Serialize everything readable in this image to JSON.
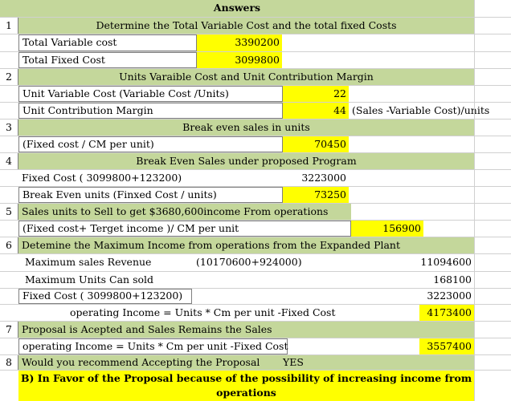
{
  "title": "Answers",
  "rows": {
    "s1_num": "1",
    "s1_head": "Determine the Total Variable Cost and the total fixed Costs",
    "tvc_label": "Total Variable cost",
    "tvc_value": "3390200",
    "tfc_label": "Total Fixed Cost",
    "tfc_value": "3099800",
    "s2_num": "2",
    "s2_head": "Units Varaible Cost and Unit Contribution Margin",
    "uvc_label": "Unit Variable Cost (Variable Cost /Units)",
    "uvc_value": "22",
    "ucm_label": "Unit Contribution Margin",
    "ucm_value": "44",
    "ucm_note": "(Sales -Variable Cost)/units",
    "s3_num": "3",
    "s3_head": "Break even sales in units",
    "be_label": "(Fixed cost / CM per unit)",
    "be_value": "70450",
    "s4_num": "4",
    "s4_head": "Break Even Sales under proposed Program",
    "fc_label": "Fixed Cost  ( 3099800+123200)",
    "fc_value": "3223000",
    "beu_label": "Break Even units (Finxed Cost / units)",
    "beu_value": "73250",
    "s5_num": "5",
    "s5_head": "Sales units to Sell to get $3680,600income From operations",
    "s5_label": "(Fixed cost+ Terget income )/ CM per unit",
    "s5_value": "156900",
    "s6_num": "6",
    "s6_head": "Detemine the Maximum Income from operations from the Expanded Plant",
    "msr_label": "Maximum sales Revenue",
    "msr_formula": "(10170600+924000)",
    "msr_value": "11094600",
    "mus_label": "Maximum Units Can sold",
    "mus_value": "168100",
    "fc2_label": "Fixed Cost  ( 3099800+123200)",
    "fc2_value": "3223000",
    "oi_label": "operating Income = Units * Cm per unit -Fixed Cost",
    "oi_value": "4173400",
    "s7_num": "7",
    "s7_head": "Proposal is Acepted and Sales Remains the Sales",
    "oi2_label": "operating Income = Units * Cm per unit -Fixed Cost",
    "oi2_value": "3557400",
    "s8_num": "8",
    "s8_head": "Would you recommend Accepting the Proposal",
    "s8_answer": "YES",
    "conclusion_line1": "B) In Favor of the Proposal because of the possibility of increasing income from",
    "conclusion_line2": "operations"
  },
  "colors": {
    "highlight": "#ffff00",
    "header_fill": "#c4d79b",
    "gridline": "#d0d0d0"
  }
}
